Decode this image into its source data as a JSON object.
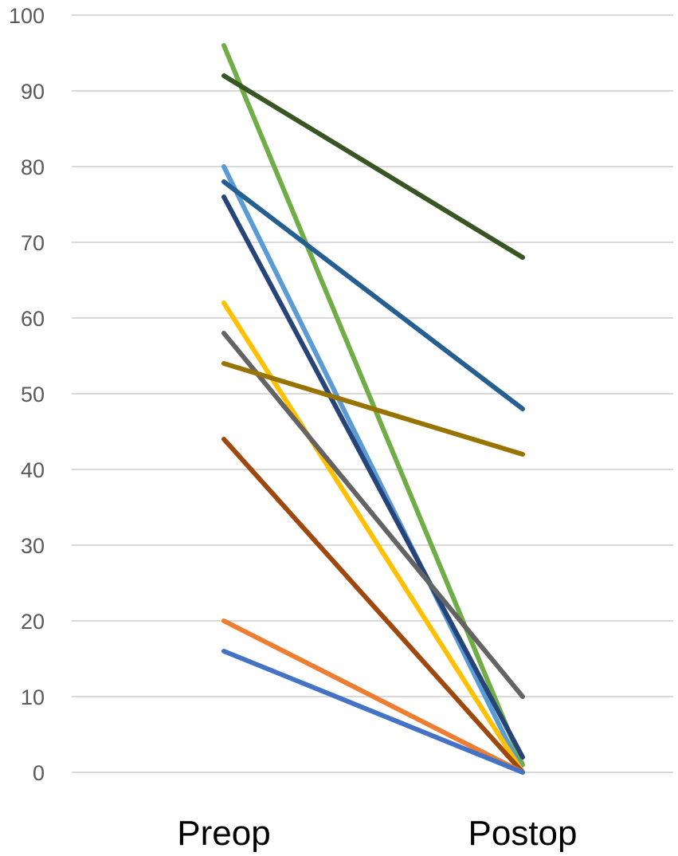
{
  "chart_data": {
    "type": "line",
    "title": "",
    "xlabel": "",
    "ylabel": "",
    "categories": [
      "Preop",
      "Postop"
    ],
    "ylim": [
      0,
      100
    ],
    "y_ticks": [
      0,
      10,
      20,
      30,
      40,
      50,
      60,
      70,
      80,
      90,
      100
    ],
    "grid": true,
    "legend": "none",
    "series": [
      {
        "values": [
          96,
          1
        ],
        "color": "#70ad47"
      },
      {
        "values": [
          92,
          68
        ],
        "color": "#375623"
      },
      {
        "values": [
          80,
          0
        ],
        "color": "#5b9bd5"
      },
      {
        "values": [
          78,
          48
        ],
        "color": "#255e91"
      },
      {
        "values": [
          76,
          2
        ],
        "color": "#264478"
      },
      {
        "values": [
          62,
          0
        ],
        "color": "#ffc000"
      },
      {
        "values": [
          58,
          10
        ],
        "color": "#636363"
      },
      {
        "values": [
          54,
          42
        ],
        "color": "#997300"
      },
      {
        "values": [
          44,
          0
        ],
        "color": "#9e480e"
      },
      {
        "values": [
          20,
          0
        ],
        "color": "#ed7d31"
      },
      {
        "values": [
          16,
          0
        ],
        "color": "#4472c4"
      }
    ]
  }
}
